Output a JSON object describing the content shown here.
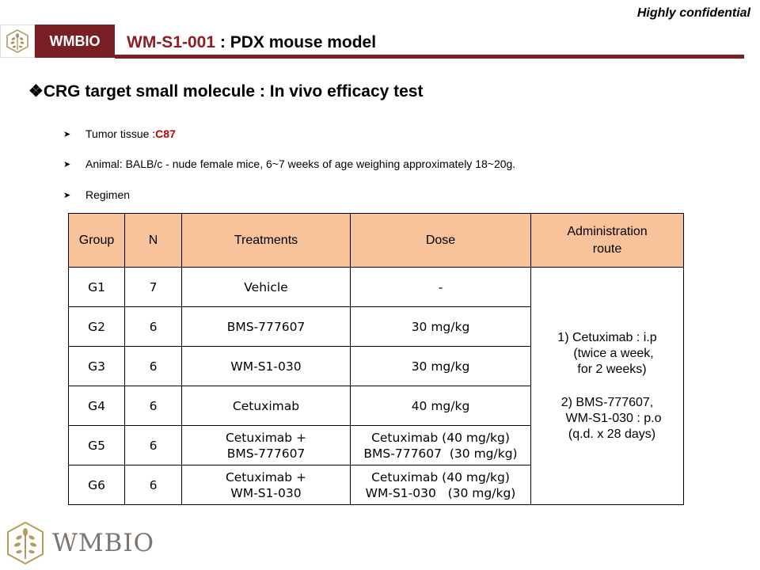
{
  "header": {
    "confidential": "Highly confidential",
    "brand": "WMBIO",
    "title_code": "WM-S1-001",
    "title_rest": " : PDX mouse model"
  },
  "subtitle": "❖CRG target small molecule : In vivo efficacy test",
  "bullets": {
    "tumor_label": "Tumor tissue : ",
    "tumor_value": "C87",
    "animal": "Animal: BALB/c - nude female mice, 6~7 weeks of age weighing approximately 18~20g.",
    "regimen": "Regimen"
  },
  "table": {
    "headers": {
      "group": "Group",
      "n": "N",
      "treatments": "Treatments",
      "dose": "Dose",
      "route_line1": "Administration",
      "route_line2": "route"
    },
    "rows": [
      {
        "group": "G1",
        "n": "7",
        "t1": "Vehicle",
        "t2": "",
        "d1": "-",
        "d2": ""
      },
      {
        "group": "G2",
        "n": "6",
        "t1": "BMS-777607",
        "t2": "",
        "d1": "30 mg/kg",
        "d2": ""
      },
      {
        "group": "G3",
        "n": "6",
        "t1": "WM-S1-030",
        "t2": "",
        "d1": "30 mg/kg",
        "d2": ""
      },
      {
        "group": "G4",
        "n": "6",
        "t1": "Cetuximab",
        "t2": "",
        "d1": "40 mg/kg",
        "d2": ""
      },
      {
        "group": "G5",
        "n": "6",
        "t1": "Cetuximab +",
        "t2": "BMS-777607",
        "d1": "Cetuximab (40 mg/kg)",
        "d2": "BMS-777607  (30 mg/kg)"
      },
      {
        "group": "G6",
        "n": "6",
        "t1": "Cetuximab +",
        "t2": "WM-S1-030",
        "d1": "Cetuximab (40 mg/kg)",
        "d2": "WM-S1-030   (30 mg/kg)"
      }
    ],
    "route": {
      "l1": "1)    Cetuximab : i.p",
      "l2": "(twice a week,",
      "l3": "for 2 weeks)",
      "l4": "2)    BMS-777607,",
      "l5": "WM-S1-030 : p.o",
      "l6": "(q.d. x 28 days)"
    }
  },
  "footer": {
    "brand": "WMBIO"
  },
  "colors": {
    "brand": "#7a1f23",
    "header_fill": "#f8c29a",
    "accent_red": "#c00000"
  }
}
